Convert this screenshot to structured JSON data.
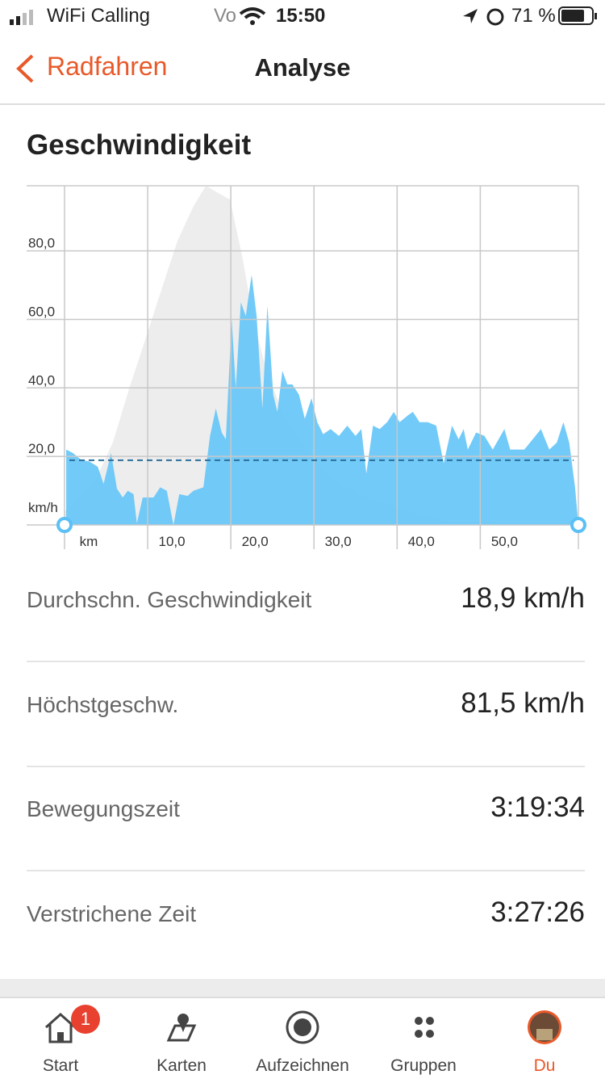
{
  "status_bar": {
    "carrier": "WiFi Calling",
    "network": "Vo",
    "time": "15:50",
    "battery": "71 %"
  },
  "nav": {
    "back": "Radfahren",
    "title": "Analyse"
  },
  "section_title": "Geschwindigkeit",
  "chart_data": {
    "type": "area",
    "xlim": [
      0,
      61.8
    ],
    "ylim": [
      0,
      99
    ],
    "xticks": [
      {
        "value": 0,
        "label": "km"
      },
      {
        "value": 10,
        "label": "10,0"
      },
      {
        "value": 20,
        "label": "20,0"
      },
      {
        "value": 30,
        "label": "30,0"
      },
      {
        "value": 40,
        "label": "40,0"
      },
      {
        "value": 50,
        "label": "50,0"
      }
    ],
    "yticks": [
      {
        "value": 0,
        "label": "km/h"
      },
      {
        "value": 20,
        "label": "20,0"
      },
      {
        "value": 40,
        "label": "40,0"
      },
      {
        "value": 60,
        "label": "60,0"
      },
      {
        "value": 80,
        "label": "80,0"
      }
    ],
    "grid": true,
    "average_line": 18.9,
    "series": [
      {
        "color": "#ececec",
        "x": [
          0,
          1.9,
          3.9,
          5.8,
          7.8,
          9.7,
          11.7,
          13.6,
          15.5,
          17,
          18.4,
          19.9,
          21.4,
          22.8,
          24.3,
          26.2,
          28.2,
          30.1,
          32,
          34,
          35.9,
          38.8,
          42.7,
          46.6,
          50.5,
          55.3,
          61.8
        ],
        "values": [
          4,
          8,
          14,
          24,
          40,
          54,
          69,
          83,
          93,
          99,
          97,
          95,
          78,
          59,
          45,
          33,
          25,
          19,
          14,
          11,
          8,
          6,
          3,
          1,
          1,
          0.5,
          1
        ]
      },
      {
        "color": "#66c6f7",
        "x": [
          0.2,
          1,
          2,
          3,
          4,
          4.7,
          5.6,
          6.3,
          7,
          7.6,
          8.3,
          8.7,
          9.4,
          10.7,
          11.5,
          12.3,
          13.1,
          13.8,
          14.8,
          15.5,
          16.7,
          17.5,
          18.2,
          18.9,
          19.4,
          20.1,
          20.6,
          21.2,
          21.8,
          22.5,
          23.1,
          23.8,
          24.4,
          25.1,
          25.6,
          26.2,
          26.8,
          27.4,
          28.2,
          28.9,
          29.7,
          30.4,
          31.1,
          32,
          33,
          34,
          35,
          35.7,
          36.3,
          37.1,
          37.9,
          38.8,
          39.6,
          40.3,
          41.3,
          41.9,
          42.7,
          43.7,
          44.7,
          45.6,
          46.6,
          47.4,
          48,
          48.5,
          49.5,
          50.5,
          51.5,
          52.2,
          52.9,
          53.6,
          54.4,
          55.3,
          56.3,
          57.3,
          58.3,
          59.2,
          60,
          60.7,
          61.4,
          61.8
        ],
        "values": [
          22,
          21,
          19,
          18.5,
          17,
          12,
          21,
          10.6,
          8,
          10,
          9,
          0.5,
          8,
          8,
          11,
          10,
          0,
          9,
          8.5,
          10,
          11,
          26,
          34,
          27,
          25,
          60,
          40,
          65,
          61,
          73,
          61,
          34,
          64,
          38,
          33,
          45,
          41,
          41,
          38,
          31,
          37,
          30,
          26.5,
          28,
          26,
          29,
          26,
          28,
          15,
          29,
          28,
          30,
          33,
          30,
          32,
          33,
          30,
          30,
          29,
          18,
          29,
          25,
          28,
          22,
          27,
          26,
          22,
          25,
          28,
          22,
          22,
          22,
          25,
          28,
          22,
          24,
          30,
          24,
          11,
          0
        ]
      }
    ]
  },
  "stats": [
    {
      "label": "Durchschn. Geschwindigkeit",
      "value": "18,9 km/h"
    },
    {
      "label": "Höchstgeschw.",
      "value": "81,5 km/h"
    },
    {
      "label": "Bewegungszeit",
      "value": "3:19:34"
    },
    {
      "label": "Verstrichene Zeit",
      "value": "3:27:26"
    }
  ],
  "tabs": [
    {
      "label": "Start",
      "badge": "1"
    },
    {
      "label": "Karten"
    },
    {
      "label": "Aufzeichnen"
    },
    {
      "label": "Gruppen"
    },
    {
      "label": "Du"
    }
  ]
}
